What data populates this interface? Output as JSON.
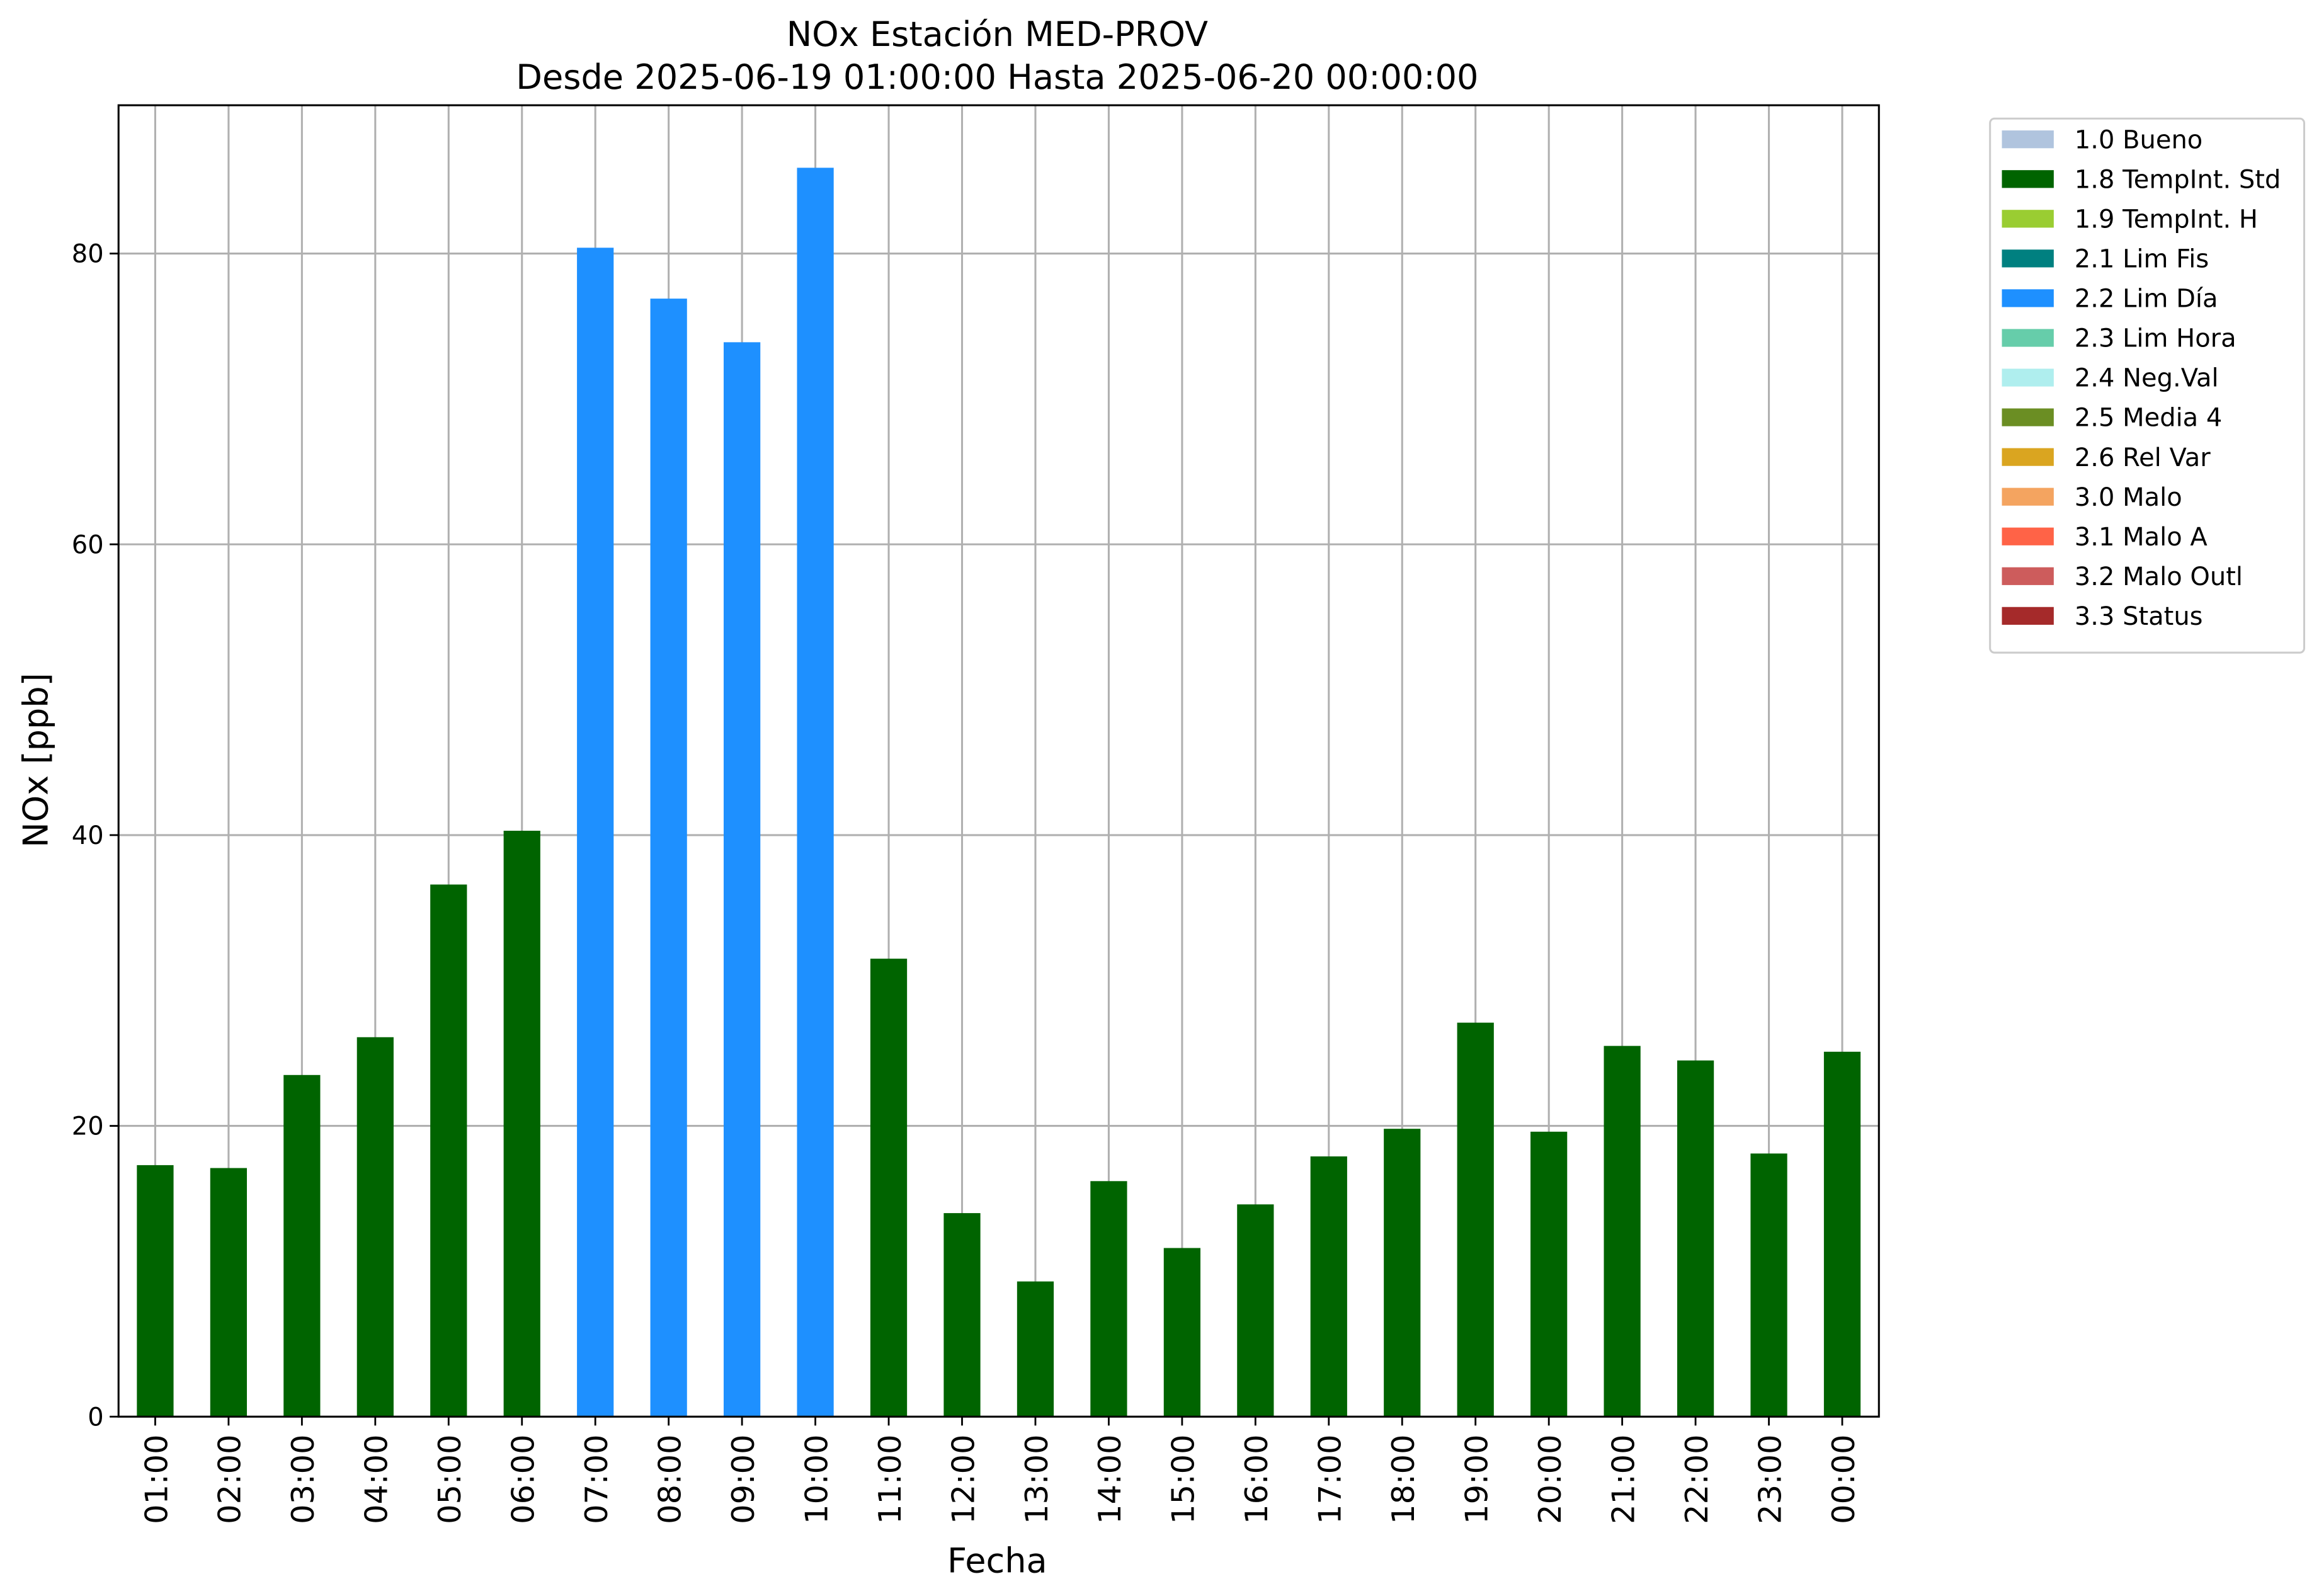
{
  "chart_data": {
    "type": "stacked_bar",
    "title": "NOx Estación MED-PROV",
    "subtitle": "Desde 2025-06-19 01:00:00 Hasta 2025-06-20 00:00:00",
    "x_label": "Fecha",
    "y_label": "NOx [ppb]",
    "categories": [
      "01:00",
      "02:00",
      "03:00",
      "04:00",
      "05:00",
      "06:00",
      "07:00",
      "08:00",
      "09:00",
      "10:00",
      "11:00",
      "12:00",
      "13:00",
      "14:00",
      "15:00",
      "16:00",
      "17:00",
      "18:00",
      "19:00",
      "20:00",
      "21:00",
      "22:00",
      "23:00",
      "00:00"
    ],
    "series": [
      {
        "name": "1.0 Bueno",
        "color": "#b0c4de",
        "values": [
          null,
          null,
          null,
          null,
          null,
          null,
          null,
          null,
          null,
          null,
          null,
          null,
          null,
          null,
          null,
          null,
          null,
          null,
          null,
          null,
          null,
          null,
          null,
          null
        ]
      },
      {
        "name": "1.8 TempInt. Std",
        "color": "#006400",
        "values": [
          17.3,
          17.1,
          23.5,
          26.1,
          36.6,
          40.3,
          null,
          null,
          null,
          null,
          31.5,
          14.0,
          9.3,
          16.2,
          11.6,
          14.6,
          17.9,
          19.8,
          27.1,
          19.6,
          25.5,
          24.5,
          18.1,
          25.1
        ]
      },
      {
        "name": "1.9 TempInt. H",
        "color": "#9acd32",
        "values": [
          null,
          null,
          null,
          null,
          null,
          null,
          null,
          null,
          null,
          null,
          null,
          null,
          null,
          null,
          null,
          null,
          null,
          null,
          null,
          null,
          null,
          null,
          null,
          null
        ]
      },
      {
        "name": "2.1 Lim Fis",
        "color": "#008080",
        "values": [
          null,
          null,
          null,
          null,
          null,
          null,
          null,
          null,
          null,
          null,
          null,
          null,
          null,
          null,
          null,
          null,
          null,
          null,
          null,
          null,
          null,
          null,
          null,
          null
        ]
      },
      {
        "name": "2.2 Lim Día",
        "color": "#1e90ff",
        "values": [
          null,
          null,
          null,
          null,
          null,
          null,
          80.4,
          76.9,
          73.9,
          85.9,
          null,
          null,
          null,
          null,
          null,
          null,
          null,
          null,
          null,
          null,
          null,
          null,
          null,
          null
        ]
      },
      {
        "name": "2.3 Lim Hora",
        "color": "#66cdaa",
        "values": [
          null,
          null,
          null,
          null,
          null,
          null,
          null,
          null,
          null,
          null,
          null,
          null,
          null,
          null,
          null,
          null,
          null,
          null,
          null,
          null,
          null,
          null,
          null,
          null
        ]
      },
      {
        "name": "2.4 Neg.Val",
        "color": "#afeeee",
        "values": [
          null,
          null,
          null,
          null,
          null,
          null,
          null,
          null,
          null,
          null,
          null,
          null,
          null,
          null,
          null,
          null,
          null,
          null,
          null,
          null,
          null,
          null,
          null,
          null
        ]
      },
      {
        "name": "2.5 Media 4",
        "color": "#6b8e23",
        "values": [
          null,
          null,
          null,
          null,
          null,
          null,
          null,
          null,
          null,
          null,
          null,
          null,
          null,
          null,
          null,
          null,
          null,
          null,
          null,
          null,
          null,
          null,
          null,
          null
        ]
      },
      {
        "name": "2.6 Rel Var",
        "color": "#daa520",
        "values": [
          null,
          null,
          null,
          null,
          null,
          null,
          null,
          null,
          null,
          null,
          null,
          null,
          null,
          null,
          null,
          null,
          null,
          null,
          null,
          null,
          null,
          null,
          null,
          null
        ]
      },
      {
        "name": "3.0 Malo",
        "color": "#f4a460",
        "values": [
          null,
          null,
          null,
          null,
          null,
          null,
          null,
          null,
          null,
          null,
          null,
          null,
          null,
          null,
          null,
          null,
          null,
          null,
          null,
          null,
          null,
          null,
          null,
          null
        ]
      },
      {
        "name": "3.1 Malo A",
        "color": "#ff6347",
        "values": [
          null,
          null,
          null,
          null,
          null,
          null,
          null,
          null,
          null,
          null,
          null,
          null,
          null,
          null,
          null,
          null,
          null,
          null,
          null,
          null,
          null,
          null,
          null,
          null
        ]
      },
      {
        "name": "3.2 Malo Outl",
        "color": "#cd5c5c",
        "values": [
          null,
          null,
          null,
          null,
          null,
          null,
          null,
          null,
          null,
          null,
          null,
          null,
          null,
          null,
          null,
          null,
          null,
          null,
          null,
          null,
          null,
          null,
          null,
          null
        ]
      },
      {
        "name": "3.3 Status",
        "color": "#a52a2a",
        "values": [
          null,
          null,
          null,
          null,
          null,
          null,
          null,
          null,
          null,
          null,
          null,
          null,
          null,
          null,
          null,
          null,
          null,
          null,
          null,
          null,
          null,
          null,
          null,
          null
        ]
      }
    ],
    "ylim": [
      0,
      90.2
    ],
    "yticks": [
      0,
      20,
      40,
      60,
      80
    ],
    "grid": true,
    "legend": "outside-right"
  }
}
